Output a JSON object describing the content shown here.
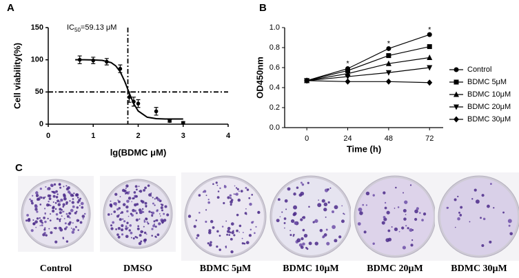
{
  "chart_data": [
    {
      "type": "scatter",
      "panel_label": "A",
      "y_label": "Cell viability(%)",
      "x_label": "lg(BDMC μM)",
      "annotation": {
        "prefix": "IC",
        "subscript": "50",
        "suffix": "=59.13 μM"
      },
      "xlim": [
        0,
        4
      ],
      "xticks": [
        0,
        1,
        2,
        3,
        4
      ],
      "ylim": [
        0,
        150
      ],
      "yticks": [
        0,
        50,
        100,
        150
      ],
      "reference_lines": {
        "x": 1.77,
        "y": 50
      },
      "points": {
        "x": [
          0.7,
          1.0,
          1.3,
          1.6,
          1.8,
          1.9,
          2.0,
          2.4,
          2.7,
          3.0
        ],
        "values": [
          100,
          99,
          97,
          86,
          42,
          35,
          32,
          20,
          5,
          2
        ],
        "errors": [
          6,
          5,
          5,
          6,
          8,
          7,
          6,
          6,
          2,
          2
        ]
      },
      "fit": {
        "x": [
          0.6,
          0.8,
          1.0,
          1.2,
          1.4,
          1.5,
          1.6,
          1.7,
          1.77,
          1.8,
          1.9,
          2.0,
          2.2,
          2.4,
          2.6,
          3.0
        ],
        "values": [
          100,
          100,
          99.8,
          99.1,
          95.6,
          90.6,
          81.4,
          66.6,
          54,
          48.5,
          31.9,
          20.5,
          10.8,
          8.6,
          8.1,
          8
        ]
      },
      "color": "#000000"
    },
    {
      "type": "line",
      "panel_label": "B",
      "y_label": "OD450nm",
      "x_label": "Time (h)",
      "x": [
        0,
        24,
        48,
        72
      ],
      "xlim": [
        -13,
        80
      ],
      "xticks": [
        0,
        24,
        48,
        72
      ],
      "ylim": [
        0,
        1.0
      ],
      "yticks": [
        {
          "value": 0,
          "label": "0.0"
        },
        0.2,
        0.4,
        0.6,
        0.8,
        {
          "value": 1.0,
          "label": "1.0"
        }
      ],
      "series": [
        {
          "name": "Control",
          "marker": "circle",
          "color": "#000000",
          "values": [
            0.47,
            0.59,
            0.79,
            0.93
          ]
        },
        {
          "name": "BDMC 5μM",
          "marker": "square",
          "color": "#000000",
          "values": [
            0.47,
            0.57,
            0.72,
            0.81
          ]
        },
        {
          "name": "BDMC 10μM",
          "marker": "triangle",
          "color": "#000000",
          "values": [
            0.47,
            0.54,
            0.64,
            0.7
          ]
        },
        {
          "name": "BDMC 20μM",
          "marker": "triangle-down",
          "color": "#000000",
          "values": [
            0.47,
            0.51,
            0.55,
            0.6
          ]
        },
        {
          "name": "BDMC 30μM",
          "marker": "diamond",
          "color": "#000000",
          "values": [
            0.47,
            0.46,
            0.46,
            0.45
          ]
        }
      ],
      "annotations": [
        {
          "text": "*",
          "x": 24,
          "y": 0.65
        },
        {
          "text": "*",
          "x": 48,
          "y": 0.85
        },
        {
          "text": "*",
          "x": 72,
          "y": 0.99
        }
      ],
      "legend": "right"
    }
  ],
  "colony_assay": {
    "panel_label": "C",
    "captions": [
      "Control",
      "DMSO",
      "BDMC 5μM",
      "BDMC 10μM",
      "BDMC 20μM",
      "BDMC 30μM"
    ]
  }
}
